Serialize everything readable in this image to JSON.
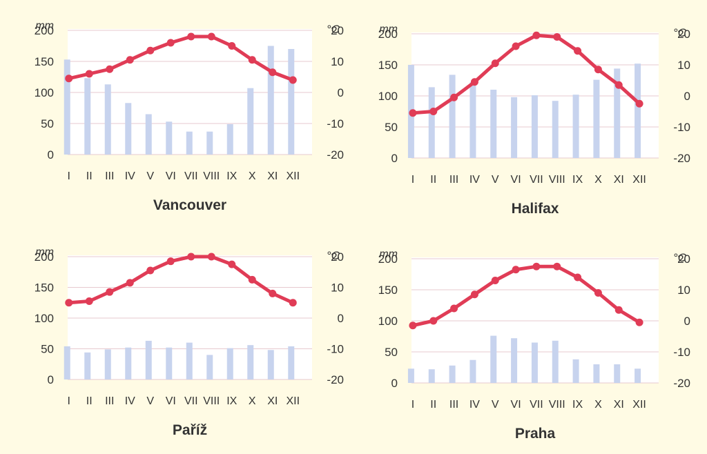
{
  "colors": {
    "page_background": "#fffbe4",
    "plot_background": "#ffffff",
    "gridline": "#e7c9cf",
    "precipitation_bar": "#c7d3ee",
    "temperature_line": "#e03c56",
    "text": "#333333"
  },
  "chart_data": [
    {
      "type": "bar",
      "title": "Vancouver",
      "categories": [
        "I",
        "II",
        "III",
        "IV",
        "V",
        "VI",
        "VII",
        "VIII",
        "IX",
        "X",
        "XI",
        "XII"
      ],
      "ylabel": "mm",
      "ylim": [
        0,
        200
      ],
      "yticks": [
        0,
        50,
        100,
        150,
        200
      ],
      "y2label": "°C",
      "y2lim": [
        -20,
        20
      ],
      "y2ticks": [
        -20,
        -10,
        0,
        10,
        20
      ],
      "grid": true,
      "series": [
        {
          "type": "bar",
          "axis": "left",
          "values": [
            153,
            123,
            113,
            83,
            65,
            53,
            37,
            37,
            49,
            107,
            175,
            170
          ]
        },
        {
          "type": "line",
          "axis": "right",
          "values": [
            4.5,
            6,
            7.5,
            10.5,
            13.5,
            16,
            18,
            18,
            15,
            10.5,
            6.5,
            4
          ]
        }
      ]
    },
    {
      "type": "bar",
      "title": "Halifax",
      "categories": [
        "I",
        "II",
        "III",
        "IV",
        "V",
        "VI",
        "VII",
        "VIII",
        "IX",
        "X",
        "XI",
        "XII"
      ],
      "ylabel": "mm",
      "ylim": [
        0,
        200
      ],
      "yticks": [
        0,
        50,
        100,
        150,
        200
      ],
      "y2label": "°C",
      "y2lim": [
        -20,
        20
      ],
      "y2ticks": [
        -20,
        -10,
        0,
        10,
        20
      ],
      "grid": true,
      "series": [
        {
          "type": "bar",
          "axis": "left",
          "values": [
            150,
            114,
            134,
            122,
            110,
            98,
            101,
            92,
            102,
            126,
            144,
            152
          ]
        },
        {
          "type": "line",
          "axis": "right",
          "values": [
            -5.5,
            -5,
            -0.5,
            4.5,
            10.5,
            16,
            19.5,
            19,
            14.5,
            8.5,
            3.5,
            -2.5
          ]
        }
      ]
    },
    {
      "type": "bar",
      "title": "Paříž",
      "categories": [
        "I",
        "II",
        "III",
        "IV",
        "V",
        "VI",
        "VII",
        "VIII",
        "IX",
        "X",
        "XI",
        "XII"
      ],
      "ylabel": "mm",
      "ylim": [
        0,
        200
      ],
      "yticks": [
        0,
        50,
        100,
        150,
        200
      ],
      "y2label": "°C",
      "y2lim": [
        -20,
        20
      ],
      "y2ticks": [
        -20,
        -10,
        0,
        10,
        20
      ],
      "grid": true,
      "series": [
        {
          "type": "bar",
          "axis": "left",
          "values": [
            54,
            44,
            49,
            52,
            63,
            52,
            60,
            40,
            51,
            56,
            48,
            54
          ]
        },
        {
          "type": "line",
          "axis": "right",
          "values": [
            5,
            5.5,
            8.5,
            11.5,
            15.5,
            18.5,
            20,
            20,
            17.5,
            12.5,
            8,
            5
          ]
        }
      ]
    },
    {
      "type": "bar",
      "title": "Praha",
      "categories": [
        "I",
        "II",
        "III",
        "IV",
        "V",
        "VI",
        "VII",
        "VIII",
        "IX",
        "X",
        "XI",
        "XII"
      ],
      "ylabel": "mm",
      "ylim": [
        0,
        200
      ],
      "yticks": [
        0,
        50,
        100,
        150,
        200
      ],
      "y2label": "°C",
      "y2lim": [
        -20,
        20
      ],
      "y2ticks": [
        -20,
        -10,
        0,
        10,
        20
      ],
      "grid": true,
      "series": [
        {
          "type": "bar",
          "axis": "left",
          "values": [
            23,
            22,
            28,
            37,
            76,
            72,
            65,
            68,
            38,
            30,
            30,
            23
          ]
        },
        {
          "type": "line",
          "axis": "right",
          "values": [
            -1.5,
            0,
            4,
            8.5,
            13,
            16.5,
            17.5,
            17.5,
            14,
            9,
            3.5,
            -0.5
          ]
        }
      ]
    }
  ]
}
